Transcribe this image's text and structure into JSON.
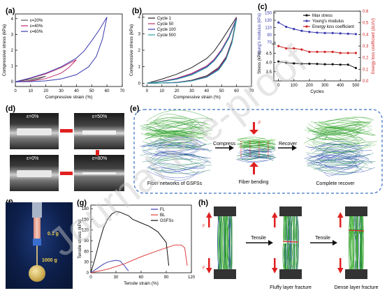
{
  "panels": {
    "a": "(a)",
    "b": "(b)",
    "c": "(c)",
    "d": "(d)",
    "e": "(e)",
    "f": "(f)",
    "g": "(g)",
    "h": "(h)"
  },
  "watermark": "Journal Pre-proof",
  "chart_data": [
    {
      "id": "a",
      "type": "line",
      "xlabel": "Compressive strain (%)",
      "ylabel": "Compressive stress (kPa)",
      "xlim": [
        0,
        70
      ],
      "ylim": [
        -0.3,
        4.3
      ],
      "xticks": [
        0,
        10,
        20,
        30,
        40,
        50,
        60,
        70
      ],
      "yticks": [
        0,
        1,
        2,
        3,
        4
      ],
      "legend": "top-left",
      "series": [
        {
          "name": "ε=20%",
          "color": "#5a5a5a",
          "loading": [
            [
              0,
              0
            ],
            [
              5,
              0.08
            ],
            [
              10,
              0.16
            ],
            [
              15,
              0.25
            ],
            [
              20,
              0.35
            ]
          ],
          "unloading": [
            [
              20,
              0.35
            ],
            [
              15,
              0.18
            ],
            [
              10,
              0.08
            ],
            [
              5,
              0.02
            ],
            [
              0,
              0
            ]
          ]
        },
        {
          "name": "ε=40%",
          "color": "#c0306a",
          "loading": [
            [
              0,
              0
            ],
            [
              10,
              0.22
            ],
            [
              20,
              0.5
            ],
            [
              30,
              0.9
            ],
            [
              35,
              1.15
            ],
            [
              40,
              1.4
            ]
          ],
          "unloading": [
            [
              40,
              1.4
            ],
            [
              35,
              0.9
            ],
            [
              30,
              0.55
            ],
            [
              20,
              0.2
            ],
            [
              10,
              0.05
            ],
            [
              0,
              0
            ]
          ]
        },
        {
          "name": "ε=60%",
          "color": "#3a3ab0",
          "loading": [
            [
              0,
              0
            ],
            [
              10,
              0.25
            ],
            [
              20,
              0.55
            ],
            [
              30,
              0.95
            ],
            [
              40,
              1.5
            ],
            [
              45,
              1.95
            ],
            [
              50,
              2.6
            ],
            [
              55,
              3.3
            ],
            [
              60,
              4.1
            ]
          ],
          "unloading": [
            [
              60,
              4.1
            ],
            [
              57,
              2.7
            ],
            [
              53,
              1.6
            ],
            [
              48,
              0.95
            ],
            [
              40,
              0.45
            ],
            [
              30,
              0.18
            ],
            [
              20,
              0.06
            ],
            [
              10,
              0.01
            ],
            [
              0,
              0
            ]
          ]
        }
      ]
    },
    {
      "id": "b",
      "type": "line",
      "xlabel": "Compressive strain (%)",
      "ylabel": "Compressive stress (kPa)",
      "xlim": [
        -3,
        70
      ],
      "ylim": [
        -0.2,
        4.2
      ],
      "xticks": [
        0,
        10,
        20,
        30,
        40,
        50,
        60,
        70
      ],
      "yticks": [
        0,
        1,
        2,
        3,
        4
      ],
      "legend": "top-left",
      "series": [
        {
          "name": "Cycle 1",
          "color": "#222222",
          "loading": [
            [
              0,
              0
            ],
            [
              10,
              0.25
            ],
            [
              20,
              0.55
            ],
            [
              30,
              0.95
            ],
            [
              40,
              1.5
            ],
            [
              45,
              1.95
            ],
            [
              50,
              2.6
            ],
            [
              55,
              3.3
            ],
            [
              60,
              4.0
            ]
          ],
          "unloading": [
            [
              60,
              4.0
            ],
            [
              57,
              2.6
            ],
            [
              53,
              1.6
            ],
            [
              48,
              0.95
            ],
            [
              40,
              0.45
            ],
            [
              30,
              0.18
            ],
            [
              20,
              0.05
            ],
            [
              10,
              0.01
            ],
            [
              0,
              0
            ]
          ]
        },
        {
          "name": "Cycle 50",
          "color": "#c0306a",
          "loading": [
            [
              0,
              0
            ],
            [
              10,
              0.12
            ],
            [
              20,
              0.3
            ],
            [
              30,
              0.6
            ],
            [
              40,
              1.05
            ],
            [
              45,
              1.45
            ],
            [
              50,
              2.05
            ],
            [
              55,
              2.85
            ],
            [
              60,
              3.95
            ]
          ],
          "unloading": [
            [
              60,
              3.95
            ],
            [
              57,
              2.55
            ],
            [
              53,
              1.55
            ],
            [
              48,
              0.9
            ],
            [
              40,
              0.4
            ],
            [
              30,
              0.16
            ],
            [
              20,
              0.04
            ],
            [
              10,
              0.01
            ],
            [
              0,
              0
            ]
          ]
        },
        {
          "name": "Cycle 100",
          "color": "#3a3ab0",
          "loading": [
            [
              0,
              0
            ],
            [
              10,
              0.1
            ],
            [
              20,
              0.27
            ],
            [
              30,
              0.55
            ],
            [
              40,
              1.0
            ],
            [
              45,
              1.4
            ],
            [
              50,
              2.0
            ],
            [
              55,
              2.8
            ],
            [
              60,
              3.9
            ]
          ],
          "unloading": [
            [
              60,
              3.9
            ],
            [
              57,
              2.5
            ],
            [
              53,
              1.5
            ],
            [
              48,
              0.85
            ],
            [
              40,
              0.38
            ],
            [
              30,
              0.15
            ],
            [
              20,
              0.04
            ],
            [
              10,
              0.01
            ],
            [
              0,
              0
            ]
          ]
        },
        {
          "name": "Cycle 500",
          "color": "#2aa0a0",
          "loading": [
            [
              0,
              0
            ],
            [
              10,
              0.09
            ],
            [
              20,
              0.24
            ],
            [
              30,
              0.5
            ],
            [
              40,
              0.95
            ],
            [
              45,
              1.35
            ],
            [
              50,
              1.95
            ],
            [
              55,
              2.75
            ],
            [
              60,
              3.85
            ]
          ],
          "unloading": [
            [
              60,
              3.85
            ],
            [
              57,
              2.45
            ],
            [
              53,
              1.45
            ],
            [
              48,
              0.8
            ],
            [
              40,
              0.36
            ],
            [
              30,
              0.14
            ],
            [
              20,
              0.03
            ],
            [
              10,
              0.01
            ],
            [
              0,
              0
            ]
          ]
        }
      ]
    },
    {
      "id": "c",
      "type": "line",
      "xlabel": "Cycles",
      "ylabel_top": "Young's modulus (kPa)",
      "ylabel_bottom": "Stress (kPa)",
      "ylabel_right": "Energy loss coefficient (ΔU/U)",
      "xlim": [
        -30,
        530
      ],
      "xticks": [
        0,
        100,
        200,
        300,
        400,
        500
      ],
      "top_ylim": [
        65,
        155
      ],
      "top_yticks": [
        70,
        90,
        110,
        130,
        150
      ],
      "bottom_ylim": [
        3.0,
        5.0
      ],
      "bottom_yticks": [
        3.5,
        4.0,
        4.5
      ],
      "right_ylim": [
        0,
        0.6
      ],
      "right_yticks": [
        0.0,
        0.1,
        0.2,
        0.3,
        0.4,
        0.5,
        0.6
      ],
      "legend": "top-right",
      "series": [
        {
          "name": "Max stress",
          "color": "#111111",
          "axis": "bottom",
          "x": [
            0,
            50,
            100,
            150,
            200,
            250,
            300,
            350,
            400,
            450,
            500
          ],
          "y": [
            4.05,
            3.98,
            3.95,
            3.93,
            3.93,
            3.92,
            3.9,
            3.9,
            3.88,
            3.88,
            3.7
          ]
        },
        {
          "name": "Young's modulus",
          "color": "#3a3ab0",
          "axis": "top",
          "x": [
            0,
            50,
            100,
            150,
            200,
            250,
            300,
            350,
            400,
            450,
            500
          ],
          "y": [
            124,
            112,
            106,
            101,
            98,
            96,
            95,
            95,
            94,
            93,
            92
          ]
        },
        {
          "name": "Energy loss coefficient",
          "color": "#d02020",
          "axis": "right",
          "x": [
            0,
            50,
            100,
            150,
            200,
            250,
            300,
            350,
            400,
            450,
            500
          ],
          "y": [
            0.3,
            0.28,
            0.28,
            0.27,
            0.25,
            0.25,
            0.25,
            0.25,
            0.24,
            0.24,
            0.24
          ]
        }
      ]
    },
    {
      "id": "g",
      "type": "line",
      "xlabel": "Tensile strain (%)",
      "ylabel": "Tensile stress (kPa)",
      "xlim": [
        0,
        120
      ],
      "ylim": [
        0,
        190
      ],
      "xticks": [
        0,
        30,
        60,
        90,
        120
      ],
      "yticks": [
        0,
        30,
        60,
        90,
        120,
        150,
        180
      ],
      "legend": "top-right",
      "series": [
        {
          "name": "FL",
          "color": "#3a3ab0",
          "x": [
            0,
            5,
            10,
            15,
            20,
            25,
            30,
            35,
            40,
            45
          ],
          "y": [
            0,
            8,
            16,
            24,
            30,
            33,
            35,
            33,
            20,
            5
          ]
        },
        {
          "name": "BL",
          "color": "#e04040",
          "x": [
            0,
            20,
            40,
            60,
            80,
            100,
            108,
            112,
            115
          ],
          "y": [
            0,
            10,
            25,
            45,
            62,
            78,
            78,
            70,
            20
          ]
        },
        {
          "name": "GSFSs",
          "color": "#111111",
          "x": [
            0,
            5,
            10,
            15,
            20,
            25,
            30,
            35,
            40,
            45,
            50,
            60,
            70,
            80,
            90,
            93
          ],
          "y": [
            0,
            40,
            85,
            125,
            150,
            165,
            172,
            170,
            165,
            160,
            150,
            140,
            130,
            115,
            85,
            20
          ]
        }
      ]
    }
  ],
  "d": {
    "l1": "ε=0%",
    "l2": "ε=50%",
    "l3": "ε=0%",
    "l4": "ε=80%"
  },
  "e": {
    "compress": "Compress",
    "recover": "Recover",
    "force": "F",
    "cap1": "Fiber networks of GSFSs",
    "cap2": "Fiber bending",
    "cap3": "Complete recover"
  },
  "f": {
    "w1": "0.1 g",
    "w2": "1000 g"
  },
  "h": {
    "tensile1": "Tensile",
    "tensile2": "Tensile",
    "ftop": "F",
    "fbottom": "F",
    "cap1": "Fluffy layer fracture",
    "cap2": "Dense layer fracture"
  }
}
